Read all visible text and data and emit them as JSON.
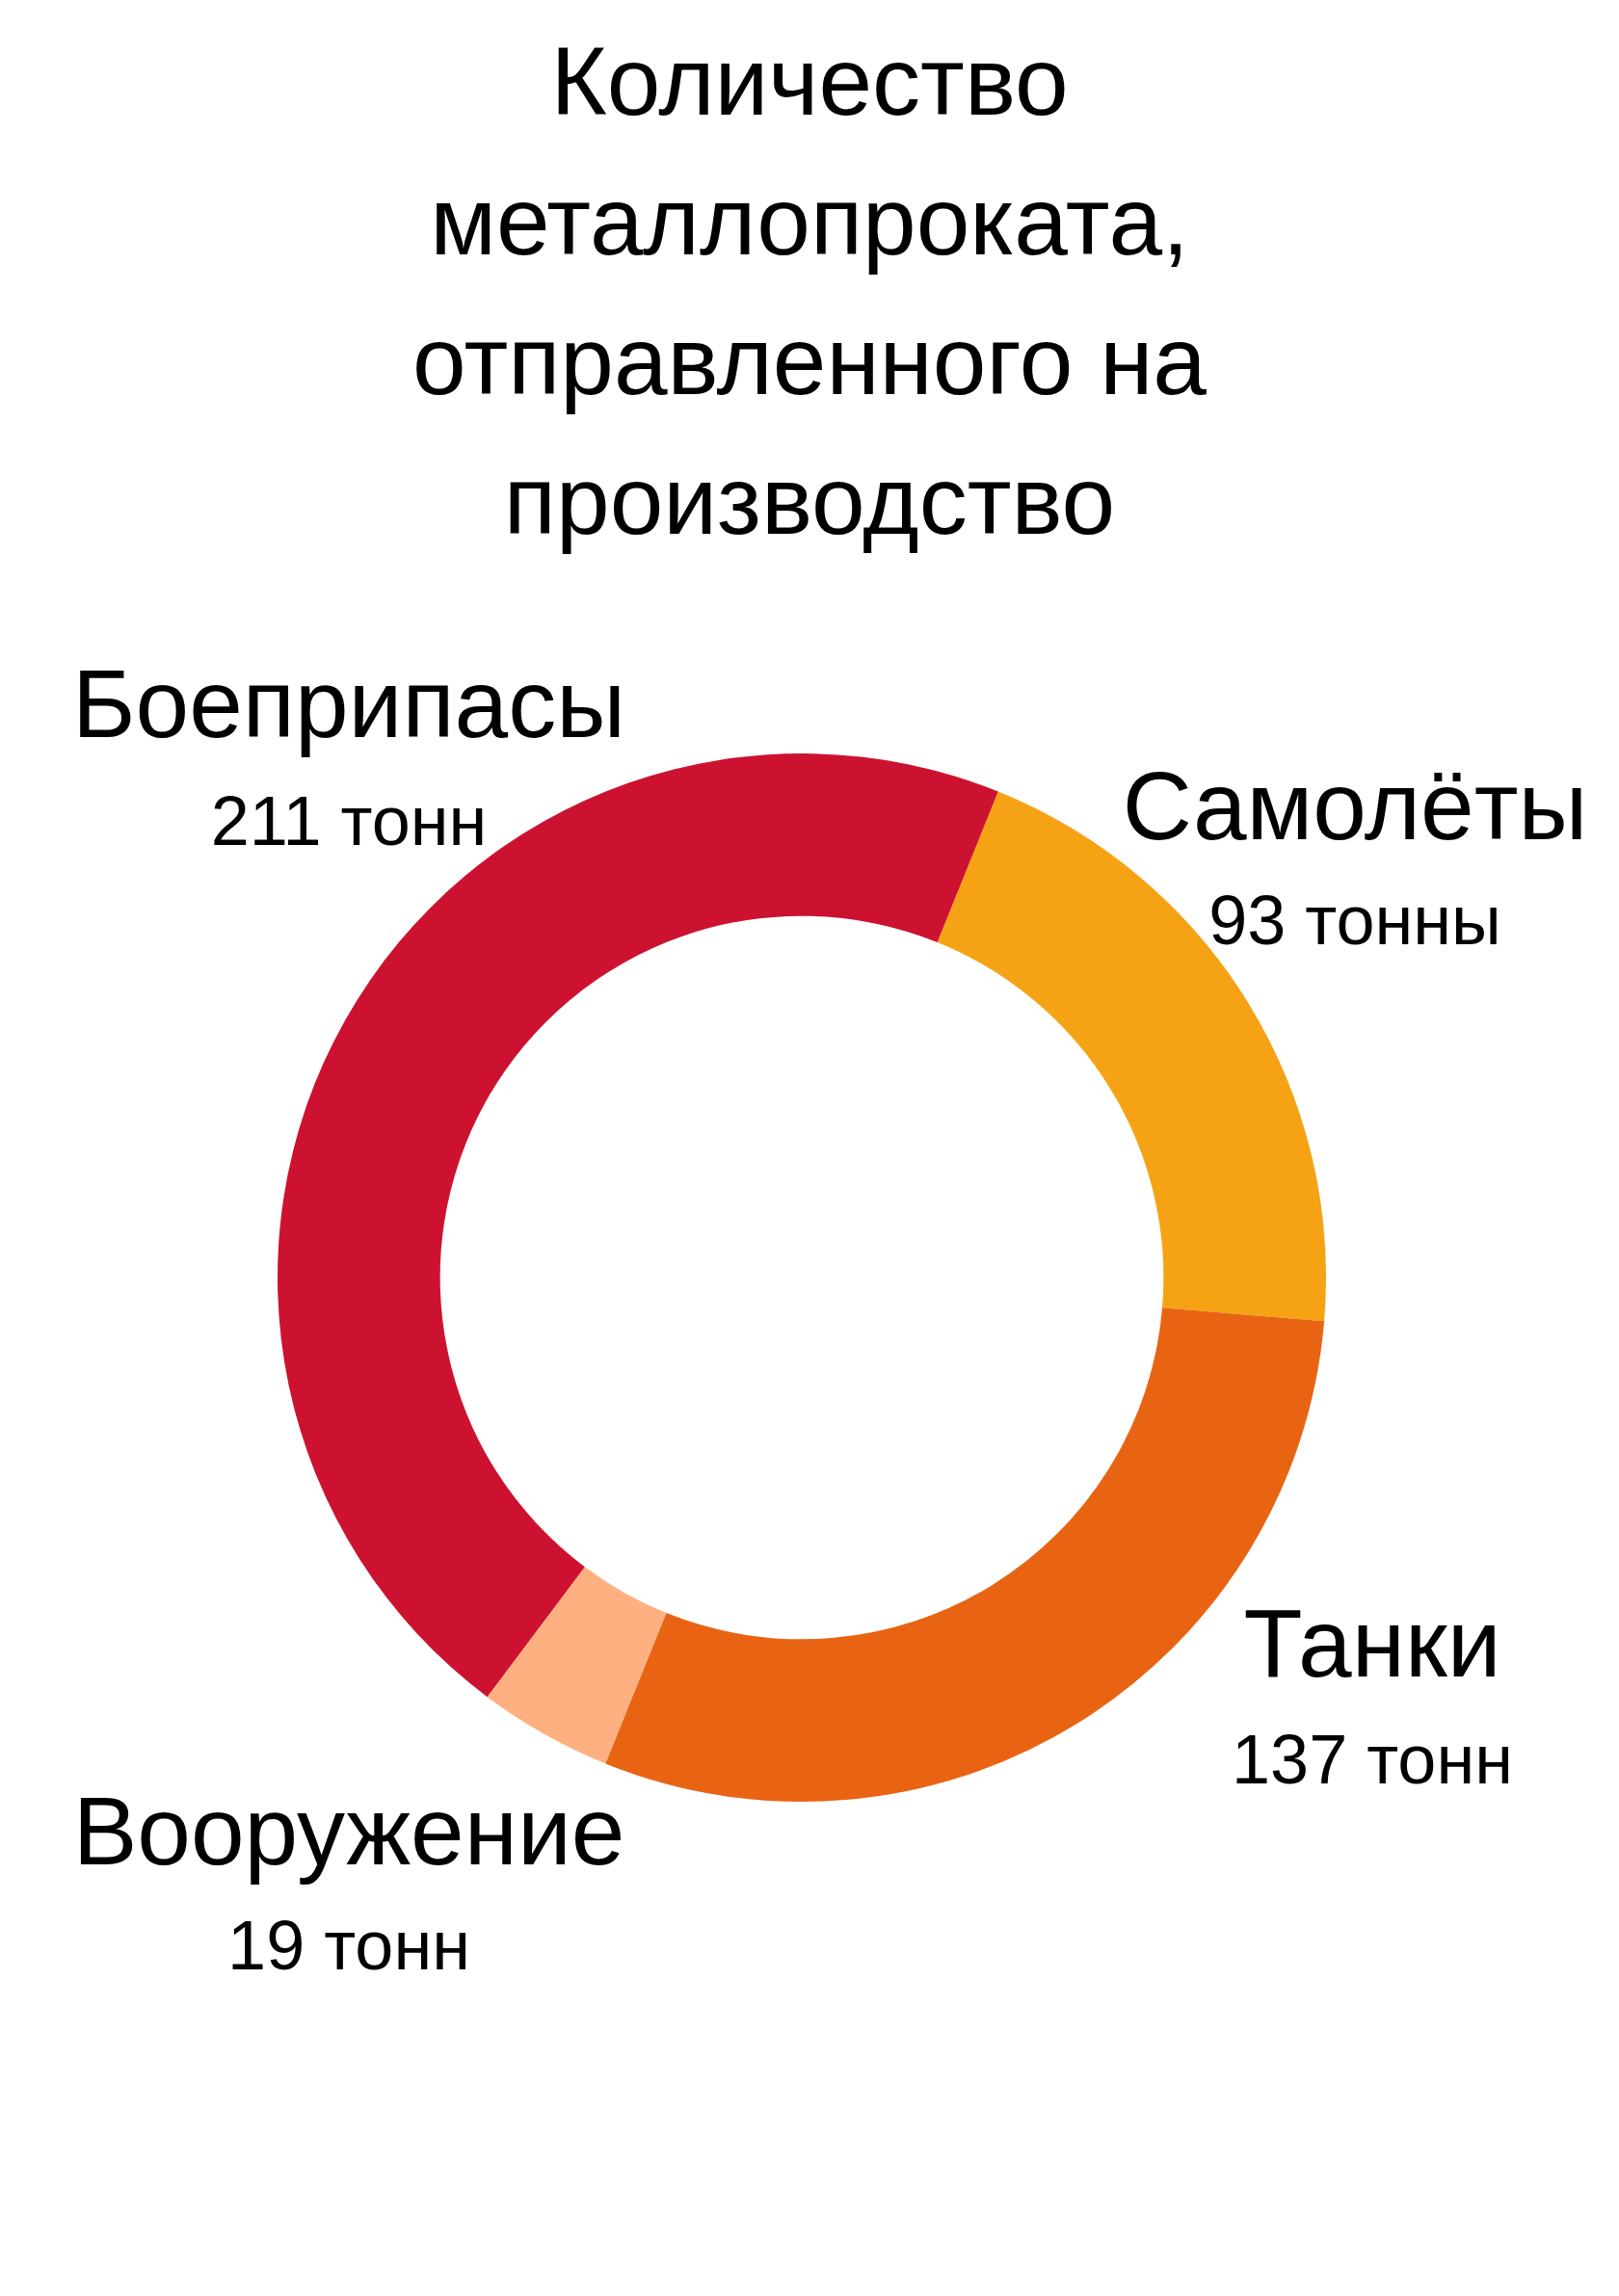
{
  "chart_data": {
    "type": "donut",
    "title": "Количество металлопроката, отправленного на производство",
    "categories": [
      "Самолёты",
      "Танки",
      "Вооружение",
      "Боеприпасы"
    ],
    "values": [
      93,
      137,
      19,
      211
    ],
    "value_labels": [
      "93 тонны",
      "137 тонн",
      "19 тонн",
      "211 тонн"
    ],
    "colors": [
      "#f5a315",
      "#e86413",
      "#feb080",
      "#cc1230"
    ],
    "legend": false
  }
}
